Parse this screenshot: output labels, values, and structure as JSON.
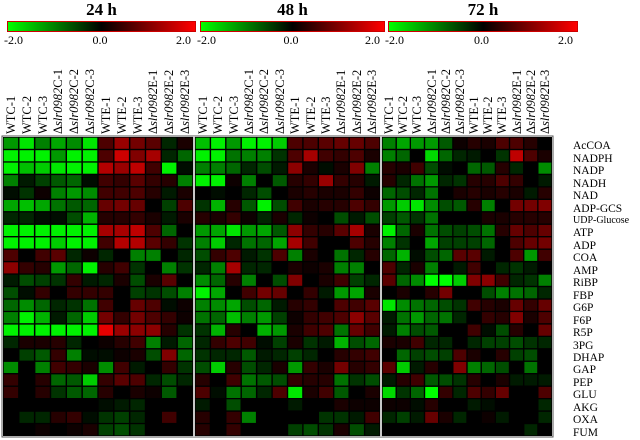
{
  "colorscale": {
    "min": -2.0,
    "mid": 0.0,
    "max": 2.0,
    "min_label": "-2.0",
    "mid_label": "0.0",
    "max_label": "2.0",
    "low_color": "#00ff00",
    "mid_color": "#000000",
    "high_color": "#ff0000"
  },
  "chart_data": {
    "type": "heatmap",
    "rows": [
      "AcCOA",
      "NADPH",
      "NADP",
      "NADH",
      "NAD",
      "ADP-GCS",
      "UDP-Glucose",
      "ATP",
      "ADP",
      "COA",
      "AMP",
      "RiBP",
      "FBP",
      "G6P",
      "F6P",
      "R5P",
      "3PG",
      "DHAP",
      "GAP",
      "PEP",
      "GLU",
      "AKG",
      "OXA",
      "FUM"
    ],
    "panels": [
      {
        "title": "24 h",
        "columns": [
          "WTC-1",
          "WTC-2",
          "WTC-3",
          "Δslr0982C-1",
          "Δslr0982C-2",
          "Δslr0982C-3",
          "WTE-1",
          "WTE-2",
          "WTE-3",
          "Δslr0982E-1",
          "Δslr0982E-2",
          "Δslr0982E-3"
        ],
        "values": [
          [
            -1.2,
            -1.8,
            -1.0,
            -1.3,
            -1.1,
            -1.8,
            0.6,
            1.2,
            0.9,
            0.7,
            -0.3,
            0.2
          ],
          [
            -1.9,
            -1.9,
            -1.9,
            -1.2,
            -1.9,
            -1.9,
            0.6,
            1.6,
            1.0,
            1.3,
            -0.3,
            -0.8
          ],
          [
            -1.9,
            -1.5,
            -1.6,
            -1.8,
            -1.9,
            -1.9,
            1.4,
            1.2,
            1.5,
            0.5,
            -1.9,
            -0.1
          ],
          [
            -1.0,
            -0.2,
            -0.5,
            -0.7,
            -0.8,
            -0.1,
            0.5,
            0.4,
            0.7,
            0.4,
            0.3,
            -1.0
          ],
          [
            -0.1,
            -0.4,
            0.1,
            -1.0,
            -1.2,
            -1.1,
            0.5,
            0.5,
            0.6,
            0.3,
            -0.2,
            0.2
          ],
          [
            -1.3,
            -1.5,
            -1.3,
            -0.9,
            -0.7,
            -0.8,
            0.8,
            0.9,
            0.8,
            0.0,
            -0.5,
            0.6
          ],
          [
            -0.3,
            -0.3,
            -0.1,
            -0.1,
            -0.6,
            -1.4,
            0.3,
            0.3,
            0.4,
            0.2,
            -0.2,
            0.2
          ],
          [
            -1.9,
            -1.9,
            -1.9,
            -1.9,
            -1.9,
            -1.9,
            1.3,
            1.3,
            1.5,
            0.6,
            -0.8,
            0.0
          ],
          [
            -1.9,
            -1.9,
            -1.9,
            -1.6,
            -1.9,
            -1.9,
            0.5,
            1.4,
            1.4,
            0.7,
            0.4,
            -0.4
          ],
          [
            0.6,
            0.0,
            0.5,
            0.7,
            -0.3,
            0.1,
            -0.3,
            0.0,
            -1.0,
            -1.0,
            0.0,
            -0.3
          ],
          [
            1.1,
            0.4,
            0.3,
            -1.2,
            -0.8,
            -1.9,
            0.3,
            0.5,
            -0.4,
            0.0,
            -1.0,
            -0.4
          ],
          [
            -0.2,
            -0.6,
            -0.5,
            -0.4,
            0.4,
            -0.2,
            -0.3,
            0.2,
            -0.6,
            0.2,
            0.7,
            0.0
          ],
          [
            -0.6,
            -0.1,
            0.4,
            0.0,
            0.4,
            0.4,
            0.4,
            0.0,
            -0.5,
            -0.4,
            -0.6,
            -1.0
          ],
          [
            -0.8,
            -1.1,
            -0.8,
            -0.3,
            -0.4,
            -0.9,
            0.5,
            0.0,
            0.8,
            0.6,
            -0.1,
            0.1
          ],
          [
            -1.0,
            -1.9,
            -1.4,
            -0.2,
            -0.8,
            -1.6,
            0.9,
            0.4,
            0.9,
            0.6,
            0.4,
            0.1
          ],
          [
            -1.9,
            -1.9,
            -1.9,
            -1.9,
            -1.9,
            -1.9,
            1.8,
            1.2,
            1.1,
            1.1,
            0.3,
            -0.4
          ],
          [
            -0.3,
            0.2,
            0.2,
            0.3,
            -0.3,
            0.0,
            0.1,
            0.3,
            0.5,
            -1.0,
            -0.2,
            -0.8
          ],
          [
            0.0,
            -0.5,
            -0.7,
            0.4,
            -1.0,
            -0.1,
            -0.1,
            0.1,
            0.2,
            -0.6,
            1.0,
            -0.8
          ],
          [
            -1.1,
            0.0,
            -1.0,
            0.5,
            0.4,
            0.2,
            -1.1,
            0.5,
            -0.2,
            0.0,
            0.4,
            -0.4
          ],
          [
            0.4,
            0.0,
            0.3,
            -0.8,
            -0.7,
            -1.6,
            0.4,
            0.7,
            0.6,
            -0.3,
            -0.6,
            -0.3
          ],
          [
            0.4,
            0.0,
            0.3,
            -0.4,
            -0.7,
            -0.8,
            0.3,
            0.0,
            0.2,
            0.1,
            -0.7,
            0.0
          ],
          [
            0.0,
            0.0,
            0.0,
            0.0,
            0.0,
            0.0,
            -0.1,
            -0.2,
            -0.3,
            0.0,
            0.0,
            0.0
          ],
          [
            0.0,
            -0.3,
            -0.3,
            0.3,
            0.4,
            -0.1,
            -0.4,
            -0.5,
            -0.3,
            0.0,
            0.5,
            0.0
          ],
          [
            0.0,
            0.0,
            0.1,
            0.0,
            0.1,
            0.2,
            -0.5,
            -0.6,
            -0.4,
            0.0,
            0.0,
            0.0
          ]
        ]
      },
      {
        "title": "48 h",
        "columns": [
          "WTC-1",
          "WTC-2",
          "WTC-3",
          "Δslr0982C-1",
          "Δslr0982C-2",
          "Δslr0982C-3",
          "WTE-1",
          "WTE-2",
          "WTE-3",
          "Δslr0982E-1",
          "Δslr0982E-2",
          "Δslr0982E-3"
        ],
        "values": [
          [
            -1.5,
            -1.9,
            -1.2,
            -1.9,
            -1.9,
            -1.6,
            0.6,
            0.6,
            0.7,
            0.8,
            0.8,
            0.6
          ],
          [
            -1.9,
            -1.9,
            -0.9,
            -1.0,
            -1.0,
            -0.4,
            0.6,
            1.3,
            0.5,
            0.4,
            0.6,
            0.2
          ],
          [
            -1.0,
            -1.0,
            -0.8,
            -0.3,
            -0.6,
            -0.2,
            1.1,
            0.2,
            -0.1,
            0.2,
            1.0,
            -1.0
          ],
          [
            -1.9,
            -1.9,
            0.1,
            -1.0,
            0.0,
            -0.7,
            0.3,
            0.4,
            1.2,
            0.4,
            0.3,
            -0.2
          ],
          [
            0.0,
            -0.1,
            0.0,
            -0.3,
            -0.6,
            0.0,
            0.2,
            0.3,
            0.2,
            0.2,
            0.4,
            0.1
          ],
          [
            -0.4,
            -1.4,
            0.3,
            -0.7,
            -1.9,
            -0.6,
            0.5,
            0.2,
            0.3,
            0.3,
            0.6,
            0.4
          ],
          [
            0.3,
            0.2,
            0.4,
            0.1,
            -0.3,
            0.2,
            -0.3,
            0.1,
            0.0,
            -0.6,
            -0.2,
            -0.6
          ],
          [
            -1.2,
            -1.3,
            -1.8,
            -1.2,
            -1.3,
            -0.7,
            1.1,
            0.4,
            0.3,
            0.7,
            1.3,
            0.2
          ],
          [
            -1.0,
            -1.6,
            -0.3,
            -0.9,
            -0.8,
            -1.3,
            1.3,
            0.5,
            0.0,
            0.0,
            0.6,
            0.3
          ],
          [
            -0.6,
            0.4,
            0.6,
            -0.2,
            -0.4,
            0.6,
            -1.0,
            0.2,
            0.0,
            -0.9,
            -0.3,
            0.3
          ],
          [
            -0.3,
            -1.0,
            1.3,
            -0.3,
            -0.3,
            0.0,
            0.2,
            0.1,
            0.2,
            -1.0,
            -1.0,
            0.0
          ],
          [
            -1.1,
            -0.8,
            0.3,
            -1.0,
            0.0,
            -0.6,
            1.0,
            0.0,
            0.2,
            0.5,
            -0.5,
            -0.3
          ],
          [
            -1.9,
            -1.3,
            0.0,
            0.5,
            0.9,
            0.8,
            0.0,
            0.4,
            -0.2,
            -1.2,
            -1.3,
            0.2
          ],
          [
            -1.0,
            -1.1,
            -1.3,
            -0.6,
            -0.8,
            -0.2,
            0.3,
            0.4,
            0.0,
            0.6,
            0.5,
            0.7
          ],
          [
            -0.9,
            -0.8,
            -1.5,
            -1.0,
            -1.2,
            -0.5,
            0.1,
            0.4,
            0.5,
            0.6,
            1.1,
            0.7
          ],
          [
            -0.4,
            -1.4,
            0.3,
            0.0,
            -1.4,
            -1.2,
            0.2,
            0.5,
            0.6,
            -0.9,
            0.8,
            0.5
          ],
          [
            -0.3,
            0.4,
            0.6,
            0.5,
            -0.1,
            -0.5,
            0.2,
            -0.4,
            -0.2,
            -1.4,
            -0.6,
            -0.8
          ],
          [
            -0.4,
            -0.3,
            -0.3,
            -0.7,
            -0.2,
            -0.3,
            -0.5,
            -0.3,
            0.0,
            0.3,
            0.4,
            0.5
          ],
          [
            -0.6,
            -1.6,
            0.3,
            -0.6,
            -0.3,
            0.2,
            -1.2,
            0.4,
            0.2,
            0.9,
            0.3,
            0.4
          ],
          [
            0.3,
            0.0,
            0.5,
            -0.9,
            -0.7,
            -0.6,
            0.4,
            0.3,
            0.3,
            -0.9,
            -0.4,
            -0.6
          ],
          [
            0.6,
            -0.1,
            -0.9,
            -0.8,
            -0.3,
            0.6,
            -1.8,
            0.2,
            0.5,
            -0.7,
            0.0,
            0.2
          ],
          [
            -0.2,
            0.0,
            -0.6,
            0.0,
            0.0,
            0.0,
            -0.2,
            0.0,
            0.0,
            0.2,
            0.1,
            0.1
          ],
          [
            0.3,
            0.0,
            0.4,
            -1.0,
            0.0,
            0.0,
            0.0,
            0.0,
            -0.4,
            -0.4,
            -0.2,
            0.5
          ],
          [
            0.3,
            0.0,
            0.4,
            0.0,
            0.0,
            0.0,
            -0.5,
            -0.6,
            -0.4,
            0.2,
            -0.6,
            -0.2
          ]
        ]
      },
      {
        "title": "72 h",
        "columns": [
          "WTC-1",
          "WTC-2",
          "WTC-3",
          "Δslr0982C-1",
          "Δslr0982C-2",
          "Δslr0982C-3",
          "WTE-1",
          "WTE-2",
          "WTE-3",
          "Δslr0982E-1",
          "Δslr0982E-2",
          "Δslr0982E-3"
        ],
        "values": [
          [
            -1.0,
            -1.3,
            -1.2,
            -1.2,
            -0.7,
            0.1,
            0.3,
            0.2,
            0.6,
            0.6,
            0.3,
            0.0
          ],
          [
            -1.0,
            -0.8,
            0.0,
            -1.7,
            -0.8,
            -0.3,
            -0.2,
            0.0,
            -0.4,
            1.5,
            0.6,
            0.2
          ],
          [
            0.3,
            0.2,
            0.5,
            -0.6,
            -0.1,
            0.0,
            -0.8,
            -0.7,
            0.3,
            -0.3,
            0.0,
            -1.1
          ],
          [
            0.3,
            -0.3,
            -0.9,
            -1.2,
            -0.3,
            -0.4,
            0.3,
            0.3,
            0.6,
            0.4,
            0.0,
            -0.2
          ],
          [
            -0.8,
            -0.6,
            -0.3,
            -0.9,
            0.0,
            0.2,
            0.3,
            0.2,
            0.3,
            0.2,
            -0.2,
            0.3
          ],
          [
            -1.2,
            -1.6,
            -1.8,
            -1.1,
            -0.6,
            -0.7,
            0.3,
            -1.0,
            0.0,
            0.9,
            0.9,
            1.0
          ],
          [
            -0.5,
            -0.7,
            -0.4,
            -0.9,
            0.0,
            0.0,
            0.0,
            0.2,
            0.2,
            0.3,
            0.3,
            0.3
          ],
          [
            -1.9,
            -0.8,
            0.2,
            -0.9,
            -0.6,
            -0.5,
            -0.6,
            -0.9,
            0.3,
            0.8,
            0.6,
            0.8
          ],
          [
            -1.0,
            -0.4,
            0.0,
            -1.3,
            -0.5,
            -0.5,
            -0.5,
            -0.8,
            0.0,
            0.6,
            0.8,
            0.9
          ],
          [
            -0.8,
            -1.4,
            -0.1,
            -0.6,
            -0.8,
            0.7,
            0.7,
            -0.2,
            0.0,
            0.6,
            -1.2,
            0.5
          ],
          [
            0.6,
            -0.3,
            0.2,
            -1.0,
            0.0,
            -0.2,
            0.5,
            0.0,
            -0.3,
            -0.4,
            -0.2,
            0.0
          ],
          [
            0.7,
            -0.8,
            -1.1,
            -2.0,
            -2.0,
            -1.6,
            1.0,
            1.1,
            0.5,
            -0.3,
            -0.4,
            -1.0
          ],
          [
            0.0,
            0.2,
            0.0,
            0.3,
            0.9,
            0.0,
            0.0,
            -0.6,
            -1.0,
            -0.9,
            -0.8,
            -0.3
          ],
          [
            -1.8,
            -1.1,
            -0.9,
            -0.8,
            -0.6,
            -0.4,
            0.5,
            0.3,
            0.2,
            0.8,
            0.4,
            0.8
          ],
          [
            -0.2,
            -0.9,
            -1.2,
            -0.8,
            -0.9,
            -0.3,
            0.0,
            0.4,
            0.3,
            1.0,
            0.2,
            0.6
          ],
          [
            -0.2,
            -1.0,
            -0.6,
            -0.7,
            0.0,
            0.0,
            0.5,
            -0.1,
            -0.6,
            0.3,
            0.0,
            0.8
          ],
          [
            0.2,
            0.2,
            0.5,
            -0.3,
            -0.3,
            0.0,
            -0.3,
            -0.5,
            -0.5,
            -0.6,
            -0.4,
            -0.3
          ],
          [
            0.0,
            -0.8,
            -0.5,
            -0.6,
            -0.5,
            0.6,
            0.2,
            0.0,
            0.3,
            -0.5,
            -0.6,
            0.0
          ],
          [
            0.7,
            -1.6,
            -0.2,
            0.3,
            0.0,
            1.0,
            -1.0,
            -0.8,
            -0.6,
            0.0,
            -0.9,
            0.0
          ],
          [
            -0.2,
            0.3,
            0.5,
            -0.7,
            -0.6,
            -0.4,
            0.3,
            0.0,
            0.2,
            -0.2,
            -0.2,
            -0.2
          ],
          [
            -1.7,
            -0.4,
            -0.8,
            -2.0,
            0.4,
            -0.3,
            0.6,
            0.4,
            0.8,
            0.0,
            0.0,
            0.6
          ],
          [
            0.1,
            0.1,
            -0.1,
            0.3,
            0.0,
            0.0,
            -0.2,
            -0.1,
            0.0,
            0.0,
            0.0,
            -0.3
          ],
          [
            -0.3,
            -0.5,
            -0.2,
            0.8,
            0.2,
            -0.3,
            0.0,
            0.1,
            -0.2,
            0.0,
            0.0,
            -0.3
          ],
          [
            0.0,
            0.0,
            0.0,
            0.0,
            0.0,
            0.0,
            0.0,
            0.0,
            0.0,
            0.0,
            -0.3,
            0.0
          ]
        ]
      }
    ]
  }
}
